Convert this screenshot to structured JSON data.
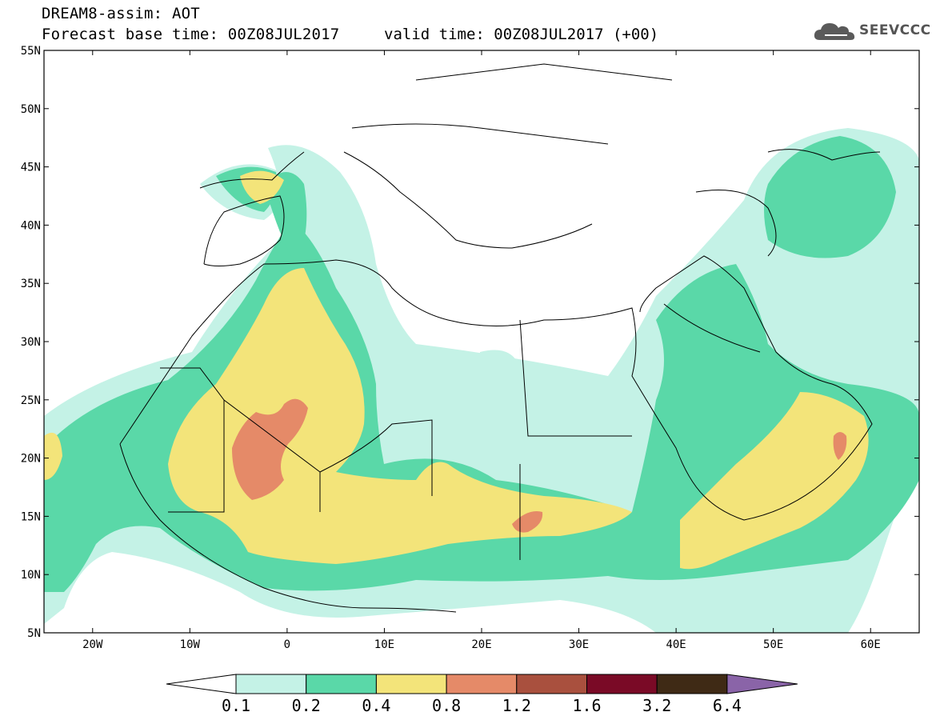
{
  "header": {
    "title_line1": "DREAM8-assim: AOT",
    "title_line2": "Forecast base time: 00Z08JUL2017",
    "valid_time": "valid time: 00Z08JUL2017 (+00)",
    "logo_text": "SEEVCCC",
    "logo_icon": "cloud-icon"
  },
  "map": {
    "lon_range": [
      -25,
      65
    ],
    "lat_range": [
      5,
      55
    ],
    "lon_ticks": [
      {
        "value": -20,
        "label": "20W"
      },
      {
        "value": -10,
        "label": "10W"
      },
      {
        "value": 0,
        "label": "0"
      },
      {
        "value": 10,
        "label": "10E"
      },
      {
        "value": 20,
        "label": "20E"
      },
      {
        "value": 30,
        "label": "30E"
      },
      {
        "value": 40,
        "label": "40E"
      },
      {
        "value": 50,
        "label": "50E"
      },
      {
        "value": 60,
        "label": "60E"
      }
    ],
    "lat_ticks": [
      {
        "value": 5,
        "label": "5N"
      },
      {
        "value": 10,
        "label": "10N"
      },
      {
        "value": 15,
        "label": "15N"
      },
      {
        "value": 20,
        "label": "20N"
      },
      {
        "value": 25,
        "label": "25N"
      },
      {
        "value": 30,
        "label": "30N"
      },
      {
        "value": 35,
        "label": "35N"
      },
      {
        "value": 40,
        "label": "40N"
      },
      {
        "value": 45,
        "label": "45N"
      },
      {
        "value": 50,
        "label": "50N"
      },
      {
        "value": 55,
        "label": "55N"
      }
    ]
  },
  "colorbar": {
    "levels": [
      "0.1",
      "0.2",
      "0.4",
      "0.8",
      "1.2",
      "1.6",
      "3.2",
      "6.4"
    ],
    "colors": [
      "#ffffff",
      "#c4f2e6",
      "#5ad8a8",
      "#f3e47a",
      "#e58a68",
      "#a9503e",
      "#7a0a26",
      "#3f2a15",
      "#8a64a8"
    ]
  }
}
